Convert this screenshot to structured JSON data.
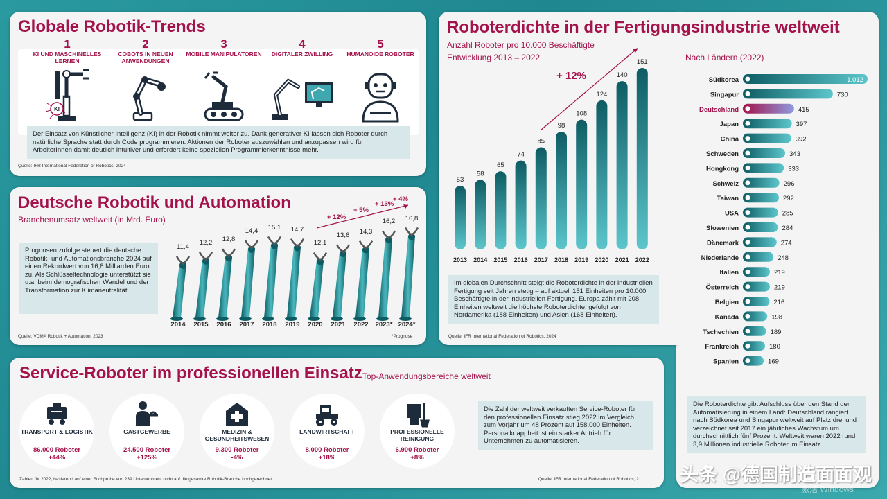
{
  "trends": {
    "title": "Globale Robotik-Trends",
    "items": [
      {
        "num": "1",
        "label": "KI UND MASCHINELLES LERNEN"
      },
      {
        "num": "2",
        "label": "COBOTS IN NEUEN ANWENDUNGEN"
      },
      {
        "num": "3",
        "label": "MOBILE MANIPULATOREN"
      },
      {
        "num": "4",
        "label": "DIGITALER ZWILLING"
      },
      {
        "num": "5",
        "label": "HUMANOIDE ROBOTER"
      }
    ],
    "ki_badge": "KI",
    "note": "Der Einsatz von Künstlicher Intelligenz (KI) in der Robotik nimmt weiter zu. Dank generativer KI lassen sich Roboter durch natürliche Sprache statt durch Code programmieren. Aktionen der Roboter auszuwählen und anzupassen wird für ArbeiterInnen damit deutlich intuitiver und erfordert keine speziellen Programmierkenntnisse mehr.",
    "source": "Quelle: IFR International Federation of Robotics, 2024"
  },
  "germany": {
    "title": "Deutsche Robotik und Automation",
    "subtitle": "Branchenumsatz weltweit (in Mrd. Euro)",
    "note": "Prognosen zufolge steuert die deutsche Robotik- und Automationsbranche 2024 auf einen Rekordwert von 16,8 Milliarden Euro zu. Als Schlüsseltechnologie unterstützt sie u.a. beim demografischen Wandel und der Transformation zur Klimaneutralität.",
    "source": "Quelle: VDMA Robotik + Automation, 2023",
    "footnote": "*Prognose"
  },
  "service": {
    "title": "Service-Roboter im professionellen Einsatz",
    "subtitle": "Top-Anwendungsbereiche weltweit",
    "items": [
      {
        "label": "TRANSPORT & LOGISTIK",
        "value": "86.000 Roboter",
        "change": "+44%",
        "icon": "transport-robot-icon"
      },
      {
        "label": "GASTGEWERBE",
        "value": "24.500 Roboter",
        "change": "+125%",
        "icon": "waiter-icon"
      },
      {
        "label": "MEDIZIN & GESUNDHEITSWESEN",
        "value": "9.300 Roboter",
        "change": "-4%",
        "icon": "hospital-icon"
      },
      {
        "label": "LANDWIRTSCHAFT",
        "value": "8.000 Roboter",
        "change": "+18%",
        "icon": "tractor-icon"
      },
      {
        "label": "PROFESSIONELLE REINIGUNG",
        "value": "6.900 Roboter",
        "change": "+8%",
        "icon": "cleaning-icon"
      }
    ],
    "note": "Die Zahl der weltweit verkauften Service-Roboter für den professionellen Einsatz stieg 2022 im Vergleich zum Vorjahr um 48 Prozent auf 158.000 Einheiten. Personalknappheit ist ein starker Antrieb für Unternehmen zu automatisieren.",
    "footnote": "Zahlen für 2022; basierend auf einer Stichprobe von 239 Unternehmen, nicht auf die gesamte Robotik-Branche hochgerechnet",
    "source": "Quelle: IFR International Federation of Robotics, 2"
  },
  "density": {
    "title": "Roboterdichte in der Fertigungsindustrie weltweit",
    "subtitle1": "Anzahl Roboter pro 10.000 Beschäftigte",
    "subtitle2": "Entwicklung 2013 – 2022",
    "growth": "+ 12%",
    "note": "Im globalen Durchschnitt steigt die Roboterdichte in der industriellen Fertigung seit Jahren stetig – auf aktuell 151 Einheiten pro 10.000 Beschäftigte in der industriellen Fertigung. Europa zählt mit 208 Einheiten weltweit die höchste Roboterdichte, gefolgt von Nordamerika (188 Einheiten) und Asien (168 Einheiten).",
    "source": "Quelle: IFR International Federation of Robotics, 2024",
    "country_title": "Nach Ländern (2022)",
    "country_note": "Die Roboterdichte gibt Aufschluss über den Stand der Automatisierung in einem Land: Deutschland rangiert nach Südkorea und Singapur weltweit auf Platz drei und verzeichnet seit 2017 ein jährliches Wachstum um durchschnittlich fünf Prozent. Weltweit waren 2022 rund 3,9 Millionen industrielle Roboter im Einsatz."
  },
  "chart_data": [
    {
      "type": "bar",
      "title": "Branchenumsatz weltweit (in Mrd. Euro)",
      "categories": [
        "2014",
        "2015",
        "2016",
        "2017",
        "2018",
        "2019",
        "2020",
        "2021",
        "2022",
        "2023*",
        "2024*"
      ],
      "values": [
        11.4,
        12.2,
        12.8,
        14.4,
        15.1,
        14.7,
        12.1,
        13.6,
        14.3,
        16.2,
        16.8
      ],
      "labels": [
        "11,4",
        "12,2",
        "12,8",
        "14,4",
        "15,1",
        "14,7",
        "12,1",
        "13,6",
        "14,3",
        "16,2",
        "16,8"
      ],
      "annotations": [
        "+ 12%",
        "+ 5%",
        "+ 13%",
        "+ 4%"
      ],
      "ylim": [
        0,
        18
      ]
    },
    {
      "type": "bar",
      "title": "Anzahl Roboter pro 10.000 Beschäftigte – Entwicklung 2013 – 2022",
      "categories": [
        "2013",
        "2014",
        "2015",
        "2016",
        "2017",
        "2018",
        "2019",
        "2020",
        "2021",
        "2022"
      ],
      "values": [
        53,
        58,
        65,
        74,
        85,
        98,
        108,
        124,
        140,
        151
      ],
      "annotations": [
        "+ 12%"
      ],
      "ylim": [
        0,
        160
      ]
    },
    {
      "type": "bar",
      "orientation": "horizontal",
      "title": "Nach Ländern (2022)",
      "categories": [
        "Südkorea",
        "Singapur",
        "Deutschland",
        "Japan",
        "China",
        "Schweden",
        "Hongkong",
        "Schweiz",
        "Taiwan",
        "USA",
        "Slowenien",
        "Dänemark",
        "Niederlande",
        "Italien",
        "Österreich",
        "Belgien",
        "Kanada",
        "Tschechien",
        "Frankreich",
        "Spanien"
      ],
      "values": [
        1012,
        730,
        415,
        397,
        392,
        343,
        333,
        296,
        292,
        285,
        284,
        274,
        248,
        219,
        219,
        216,
        198,
        189,
        180,
        169
      ],
      "labels": [
        "1.012",
        "730",
        "415",
        "397",
        "392",
        "343",
        "333",
        "296",
        "292",
        "285",
        "284",
        "274",
        "248",
        "219",
        "219",
        "216",
        "198",
        "189",
        "180",
        "169"
      ],
      "highlight": "Deutschland",
      "xlim": [
        0,
        1012
      ]
    }
  ],
  "watermark": "头条 @德国制造面面观",
  "os_watermark": "激活 Windows",
  "colors": {
    "accent": "#a3124a",
    "teal_dark": "#0e5c63",
    "teal_light": "#4ab8be",
    "bg": "#f4f4f4"
  }
}
